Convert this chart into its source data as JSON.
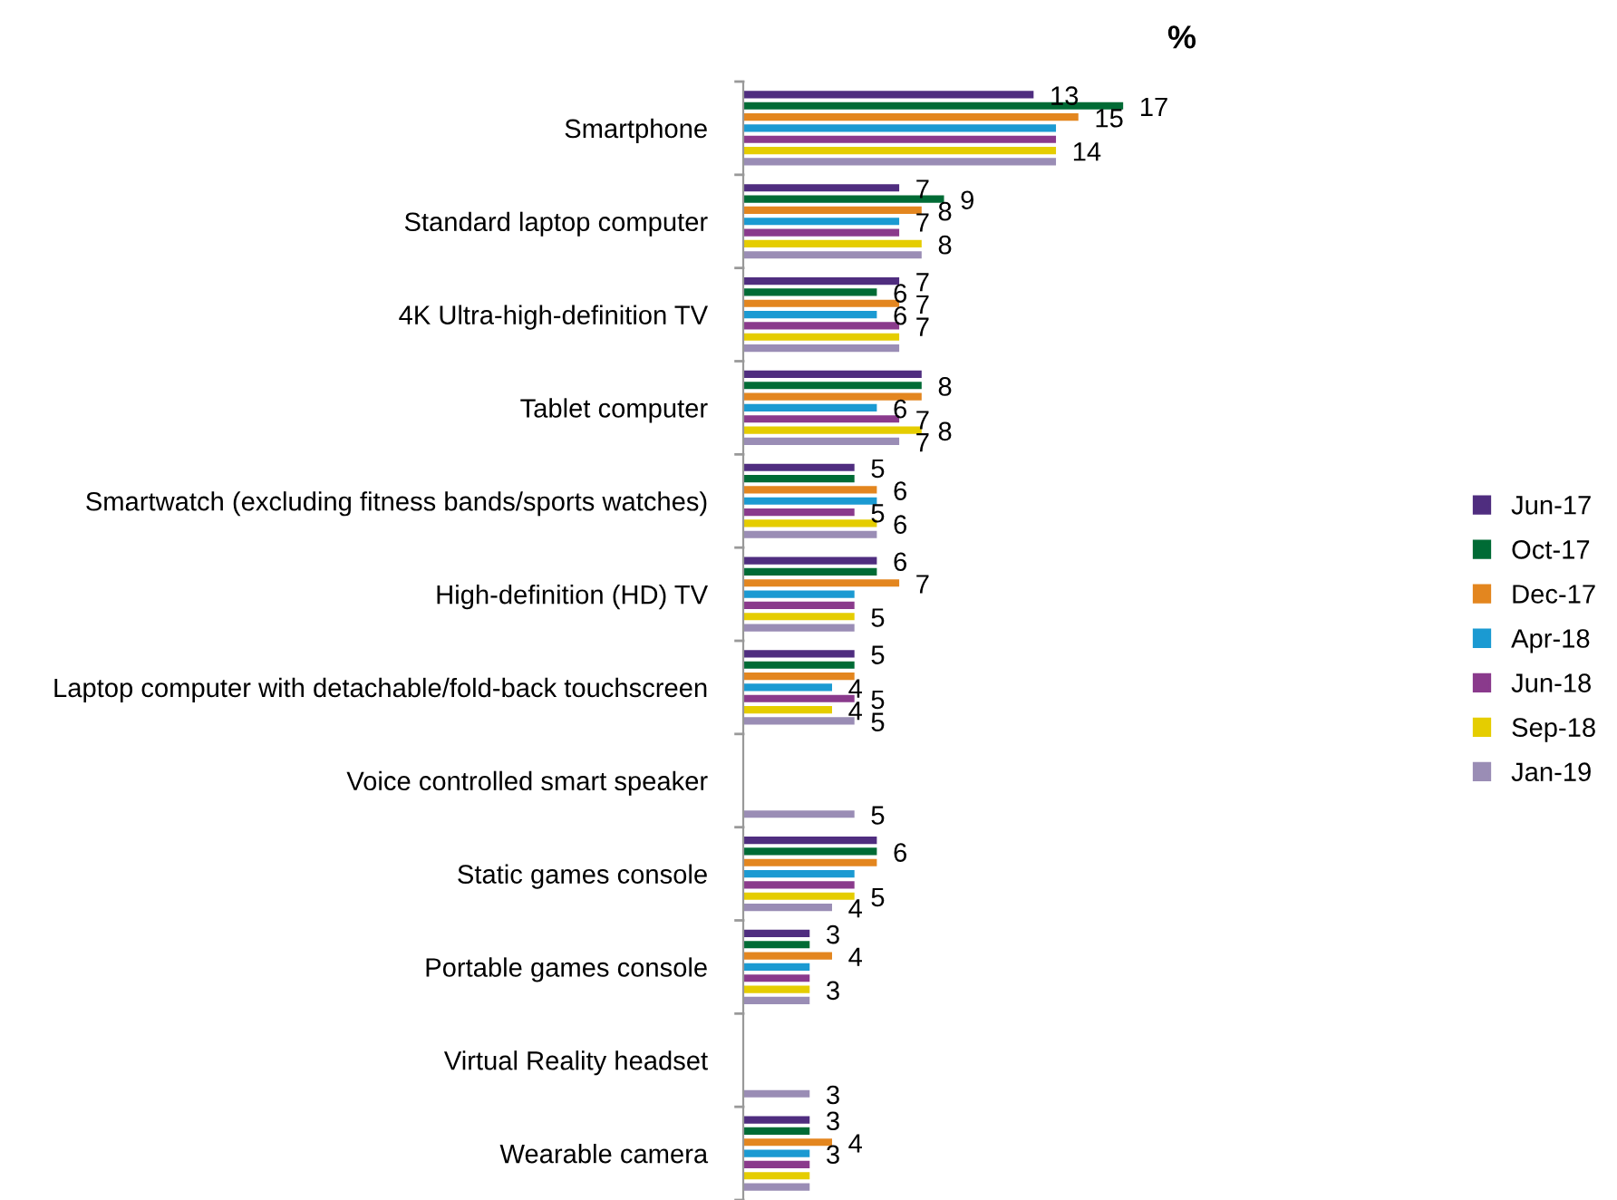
{
  "chart_data": {
    "type": "bar",
    "orientation": "horizontal",
    "title": "%",
    "legend": "right",
    "categories": [
      "Smartphone",
      "Standard laptop computer",
      "4K Ultra-high-definition TV",
      "Tablet computer",
      "Smartwatch (excluding fitness bands/sports watches)",
      "High-definition (HD) TV",
      "Laptop computer with detachable/fold-back touchscreen",
      "Voice controlled smart speaker",
      "Static games console",
      "Portable games console",
      "Virtual Reality headset",
      "Wearable camera"
    ],
    "series": [
      {
        "name": "Jun-17",
        "color": "#4f2d7f",
        "values": [
          13,
          7,
          7,
          8,
          5,
          6,
          5,
          null,
          6,
          3,
          null,
          3
        ],
        "value_labels": [
          "13",
          "7",
          "7",
          null,
          "5",
          "6",
          "5",
          null,
          null,
          "3",
          null,
          "3"
        ]
      },
      {
        "name": "Oct-17",
        "color": "#006b35",
        "values": [
          17,
          9,
          6,
          8,
          5,
          6,
          5,
          null,
          6,
          3,
          null,
          3
        ],
        "value_labels": [
          "17",
          "9",
          "6",
          "8",
          null,
          null,
          null,
          null,
          "6",
          null,
          null,
          null
        ]
      },
      {
        "name": "Dec-17",
        "color": "#e3861f",
        "values": [
          15,
          8,
          7,
          8,
          6,
          7,
          5,
          null,
          6,
          4,
          null,
          4
        ],
        "value_labels": [
          "15",
          "8",
          "7",
          null,
          "6",
          "7",
          null,
          null,
          null,
          "4",
          null,
          "4"
        ]
      },
      {
        "name": "Apr-18",
        "color": "#1b9ad2",
        "values": [
          14,
          7,
          6,
          6,
          6,
          5,
          4,
          null,
          5,
          3,
          null,
          3
        ],
        "value_labels": [
          null,
          "7",
          "6",
          "6",
          null,
          null,
          "4",
          null,
          null,
          null,
          null,
          "3"
        ]
      },
      {
        "name": "Jun-18",
        "color": "#8a3a8c",
        "values": [
          14,
          7,
          7,
          7,
          5,
          5,
          5,
          null,
          5,
          3,
          null,
          3
        ],
        "value_labels": [
          null,
          null,
          "7",
          "7",
          "5",
          null,
          "5",
          null,
          null,
          null,
          null,
          null
        ]
      },
      {
        "name": "Sep-18",
        "color": "#e5cd00",
        "values": [
          14,
          8,
          7,
          8,
          6,
          5,
          4,
          null,
          5,
          3,
          null,
          3
        ],
        "value_labels": [
          "14",
          "8",
          null,
          "8",
          "6",
          "5",
          "4",
          null,
          "5",
          "3",
          null,
          null
        ]
      },
      {
        "name": "Jan-19",
        "color": "#9a8db5",
        "values": [
          14,
          8,
          7,
          7,
          6,
          5,
          5,
          5,
          4,
          3,
          3,
          3
        ],
        "value_labels": [
          null,
          null,
          null,
          "7",
          null,
          null,
          "5",
          "5",
          "4",
          null,
          "3",
          null
        ]
      }
    ]
  }
}
